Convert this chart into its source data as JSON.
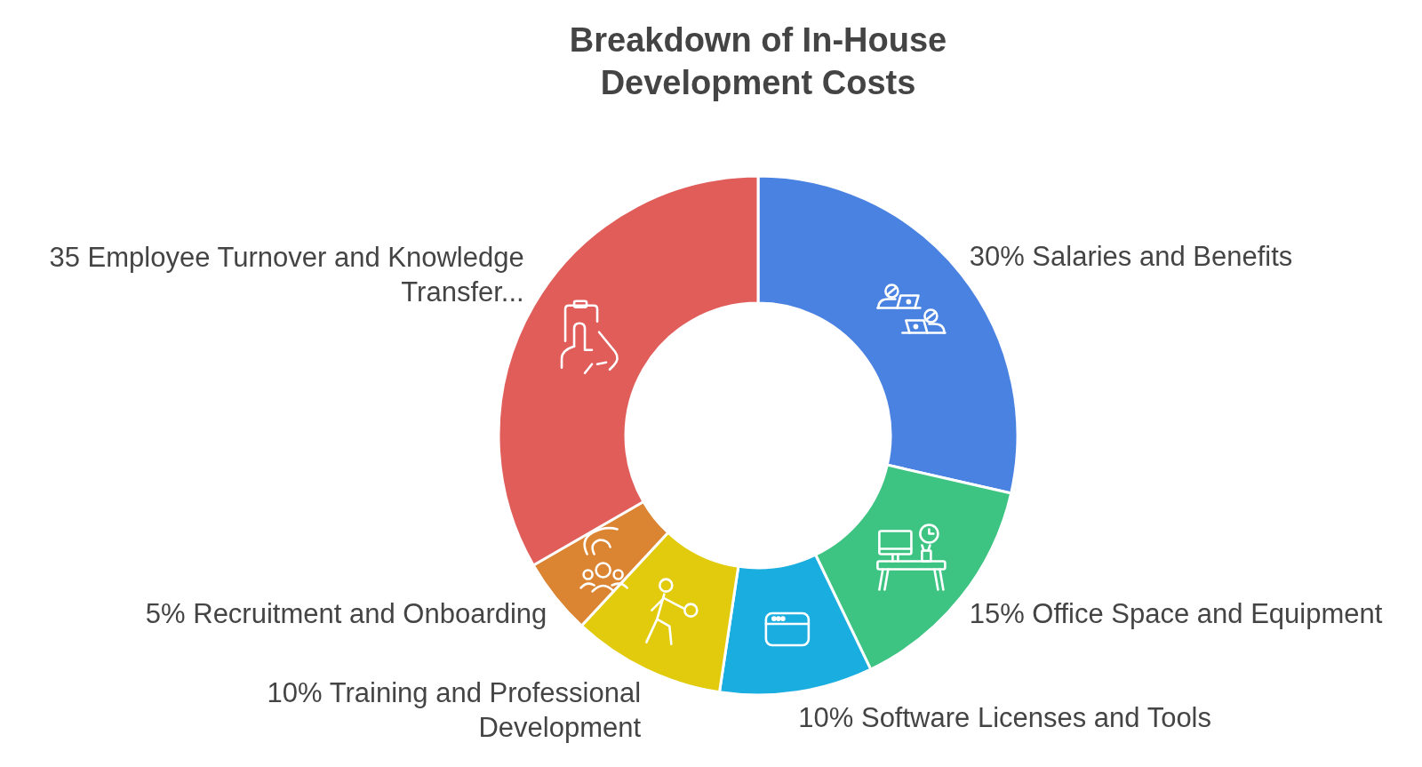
{
  "chart_data": {
    "type": "donut",
    "title": "Breakdown of In-House Development Costs",
    "categories": [
      "Salaries and Benefits",
      "Office Space and Equipment",
      "Software Licenses and Tools",
      "Training and Professional Development",
      "Recruitment and Onboarding",
      "Employee Turnover and Knowledge Transfer..."
    ],
    "values": [
      30,
      15,
      10,
      10,
      5,
      35
    ],
    "value_labels": [
      "30%",
      "15%",
      "10%",
      "10%",
      "5%",
      "35"
    ],
    "colors": [
      "#4a82e2",
      "#3ec482",
      "#1aaee0",
      "#e1cb0c",
      "#db8432",
      "#e05d5a"
    ]
  }
}
